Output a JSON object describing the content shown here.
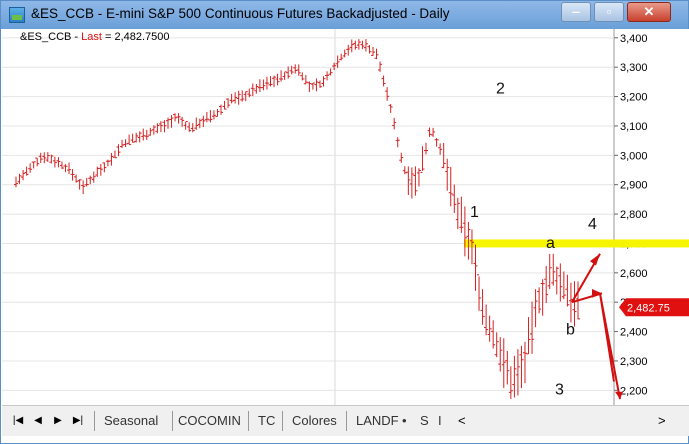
{
  "window": {
    "title": "&ES_CCB - E-mini S&P 500 Continuous Futures Backadjusted - Daily",
    "minimize_glyph": "‒",
    "maximize_glyph": "▫",
    "close_glyph": "✕"
  },
  "info_line": {
    "symbol": "&ES_CCB - ",
    "field": "Last",
    "value": " = 2,482.7500"
  },
  "chart_data": {
    "type": "ohlc",
    "y_ticks": [
      "3,400",
      "3,300",
      "3,200",
      "3,100",
      "3,000",
      "2,900",
      "2,800",
      "2,700",
      "2,600",
      "2,500",
      "2,400",
      "2,300",
      "2,200"
    ],
    "ylim": [
      2150,
      3430
    ],
    "last_price_label": "2,482.75",
    "horizontal_level": 2700,
    "annotations": [
      "1",
      "2",
      "3",
      "4",
      "a",
      "b"
    ],
    "series": [
      {
        "name": "&ES_CCB",
        "approx_close_path": [
          2910,
          2950,
          3000,
          2980,
          2950,
          2890,
          2940,
          2980,
          3040,
          3060,
          3080,
          3100,
          3130,
          3090,
          3120,
          3140,
          3190,
          3200,
          3230,
          3250,
          3270,
          3300,
          3230,
          3250,
          3320,
          3370,
          3380,
          3340,
          3160,
          2950,
          2900,
          3100,
          2980,
          2800,
          2700,
          2450,
          2350,
          2230,
          2300,
          2500,
          2600,
          2550,
          2482
        ]
      }
    ],
    "projection_arrows": true
  },
  "tabs": {
    "items": [
      "Seasonal",
      "COCOMIN",
      "TC",
      "Colores",
      "LANDF"
    ],
    "extra_icons": [
      "•",
      "S",
      "I"
    ],
    "scroll_left": "<",
    "scroll_right": ">"
  },
  "nav": {
    "first": "|◀",
    "prev": "◀",
    "next": "▶",
    "last": "▶|"
  },
  "colors": {
    "bars": "#d42020",
    "level_line": "#f5f500",
    "last_label_bg": "#e01010",
    "title_bar": "#6a9fd8"
  }
}
